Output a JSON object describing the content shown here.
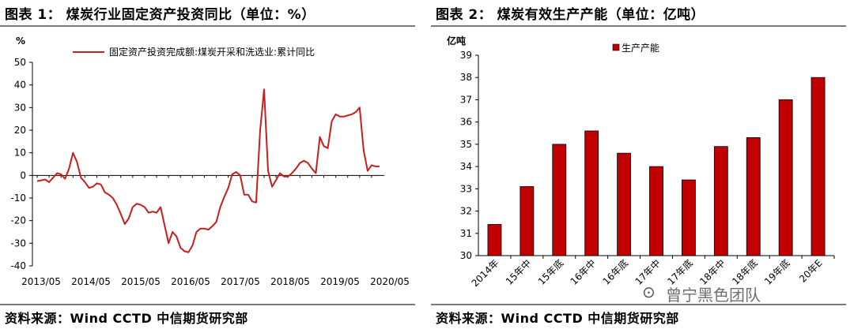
{
  "left": {
    "title": "图表 1：  煤炭行业固定资产投资同比（单位：%）",
    "source": "资料来源：Wind CCTD 中信期货研究部",
    "chart_data": {
      "type": "line",
      "title": "",
      "ylabel": "%",
      "xlabel": "",
      "ylim": [
        -40,
        50
      ],
      "yticks": [
        -40,
        -30,
        -20,
        -10,
        0,
        10,
        20,
        30,
        40,
        50
      ],
      "ytick_labels": [
        "-40",
        "-30",
        "-20",
        "-10",
        "0",
        "10",
        "20",
        "30",
        "40",
        "50"
      ],
      "xtick_labels": [
        "2013/05",
        "2014/05",
        "2015/05",
        "2016/05",
        "2017/05",
        "2018/05",
        "2019/05",
        "2020/05"
      ],
      "legend": "固定资产投资完成额:煤炭开采和洗选业:累计同比",
      "color": "#c81e1e",
      "series": [
        {
          "name": "固定资产投资完成额:煤炭开采和洗选业:累计同比",
          "x": [
            0,
            1,
            2,
            3,
            4,
            5,
            6,
            7,
            8,
            9,
            10,
            11,
            12,
            13,
            14,
            15,
            16,
            17,
            18,
            19,
            20,
            21,
            22,
            23,
            24,
            25,
            26,
            27,
            28,
            29,
            30,
            31,
            32,
            33,
            34,
            35,
            36,
            37,
            38,
            39,
            40,
            41,
            42,
            43,
            44,
            45,
            46,
            47,
            48,
            49,
            50,
            51,
            52,
            53,
            54,
            55,
            56,
            57,
            58,
            59,
            60,
            61,
            62,
            63,
            64,
            65,
            66,
            67,
            68,
            69,
            70,
            71,
            72,
            73,
            74,
            75,
            76,
            77,
            78,
            79,
            80,
            81,
            82,
            83,
            84,
            85,
            86
          ],
          "values": [
            -2.5,
            -2.2,
            -1.8,
            -3,
            -1,
            1,
            0.5,
            -1.5,
            3,
            10,
            6,
            -1,
            -3,
            -5.5,
            -5,
            -3.5,
            -4,
            -7.5,
            -8.5,
            -10,
            -13,
            -17,
            -21.5,
            -19,
            -14,
            -12.5,
            -13,
            -14,
            -16.5,
            -16,
            -16.5,
            -14,
            -22,
            -30,
            -25,
            -27,
            -32,
            -33.5,
            -34,
            -31,
            -25,
            -23.5,
            -23.5,
            -24,
            -22.5,
            -20.5,
            -14,
            -9.5,
            -5.5,
            0.5,
            1.5,
            0,
            -8.5,
            -8.5,
            -11.5,
            -12,
            20,
            38,
            2,
            -5,
            -2,
            1,
            -0.5,
            -0.5,
            1,
            3,
            5.5,
            6.5,
            5.5,
            3,
            1,
            17,
            13,
            12,
            24,
            27,
            26,
            26,
            26.5,
            27,
            28,
            30,
            11,
            2,
            4.5,
            4,
            4
          ]
        }
      ]
    }
  },
  "right": {
    "title": "图表 2：  煤炭有效生产产能（单位：亿吨）",
    "source": "资料来源：Wind CCTD 中信期货研究部",
    "chart_data": {
      "type": "bar",
      "title": "",
      "ylabel": "亿吨",
      "xlabel": "",
      "ylim": [
        30,
        39
      ],
      "yticks": [
        30,
        31,
        32,
        33,
        34,
        35,
        36,
        37,
        38,
        39
      ],
      "ytick_labels": [
        "30",
        "31",
        "32",
        "33",
        "34",
        "35",
        "36",
        "37",
        "38",
        "39"
      ],
      "legend": "生产产能",
      "color": "#c00000",
      "categories": [
        "2014年",
        "15年中",
        "15年底",
        "16年中",
        "16年底",
        "17年中",
        "17年底",
        "18年中",
        "18年底",
        "19年底",
        "20年E"
      ],
      "values": [
        31.4,
        33.1,
        35.0,
        35.6,
        34.6,
        34.0,
        33.4,
        34.9,
        35.3,
        37.0,
        38.0
      ]
    }
  },
  "watermark": {
    "logo": "⊙",
    "text": "曾宁黑色团队"
  }
}
